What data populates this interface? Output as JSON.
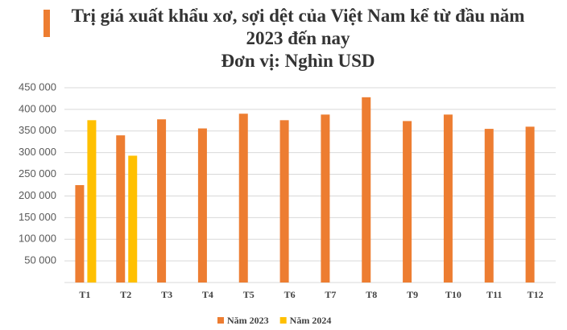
{
  "chart_data": {
    "type": "bar",
    "title": "Trị giá xuất khẩu xơ, sợi dệt của Việt Nam kể từ đầu năm 2023 đến nay",
    "subtitle": "Đơn vị: Nghìn USD",
    "categories": [
      "T1",
      "T2",
      "T3",
      "T4",
      "T5",
      "T6",
      "T7",
      "T8",
      "T9",
      "T10",
      "T11",
      "T12"
    ],
    "series": [
      {
        "name": "Năm 2023",
        "color": "#ed7d31",
        "values": [
          225000,
          340000,
          377000,
          356000,
          390000,
          375000,
          388000,
          428000,
          373000,
          388000,
          355000,
          360000
        ]
      },
      {
        "name": "Năm 2024",
        "color": "#ffc000",
        "values": [
          375000,
          293000,
          null,
          null,
          null,
          null,
          null,
          null,
          null,
          null,
          null,
          null
        ]
      }
    ],
    "ylim": [
      0,
      450000
    ],
    "yticks": [
      {
        "value": 50000,
        "label": "50 000"
      },
      {
        "value": 100000,
        "label": "100 000"
      },
      {
        "value": 150000,
        "label": "150 000"
      },
      {
        "value": 200000,
        "label": "200 000"
      },
      {
        "value": 250000,
        "label": "250 000"
      },
      {
        "value": 300000,
        "label": "300 000"
      },
      {
        "value": 350000,
        "label": "350 000"
      },
      {
        "value": 400000,
        "label": "400 000"
      },
      {
        "value": 450000,
        "label": "450 000"
      }
    ],
    "grid": true,
    "legend": "bottom"
  }
}
